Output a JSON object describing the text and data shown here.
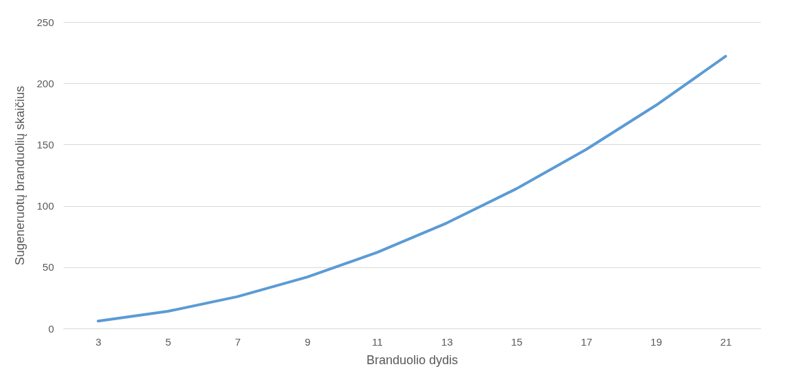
{
  "chart_data": {
    "type": "line",
    "xlabel": "Branduolio dydis",
    "ylabel": "Sugeneruotų branduolių skaičius",
    "categories": [
      "3",
      "5",
      "7",
      "9",
      "11",
      "13",
      "15",
      "17",
      "19",
      "21"
    ],
    "series": [
      {
        "color": "#5b9bd5",
        "values": [
          6,
          14,
          26,
          42,
          62,
          86,
          114,
          146,
          182,
          222
        ]
      }
    ],
    "ylim": [
      0,
      250
    ],
    "yticks": [
      0,
      50,
      100,
      150,
      200,
      250
    ],
    "grid": "y",
    "legend": false,
    "marker": "none",
    "line_style": "solid"
  }
}
